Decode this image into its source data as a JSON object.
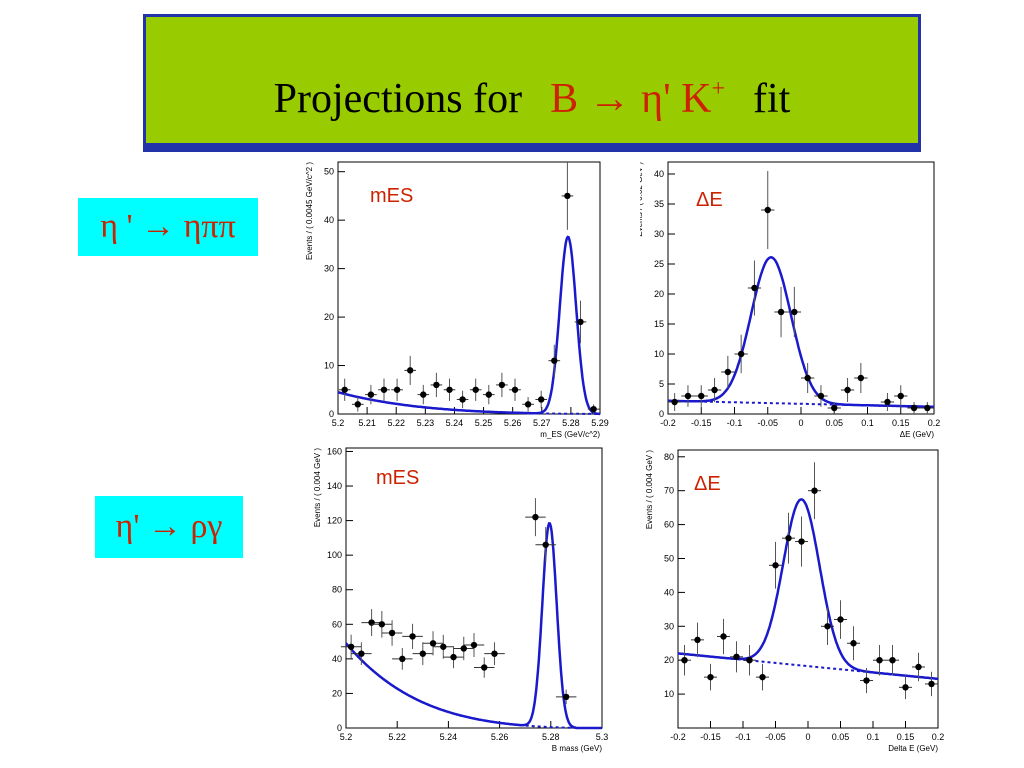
{
  "title": {
    "prefix": "Projections for",
    "decay_main": "B → η' K",
    "decay_sup": "+",
    "suffix": "fit"
  },
  "row_labels": [
    "η ' → ηππ",
    "η' → ργ"
  ],
  "colors": {
    "title_bg": "#99cc00",
    "title_border": "#2233aa",
    "label_bg": "#00ffff",
    "label_text": "#cc2200",
    "fit_curve": "#1a1acc",
    "data_points": "#000000",
    "annotation": "#cc2200"
  },
  "chart_data": [
    {
      "type": "scatter",
      "annotation": "mES",
      "xlabel": "m_ES (GeV/c^2)",
      "ylabel": "Events / ( 0.0045 GeV/c^2 )",
      "xlim": [
        5.2,
        5.29
      ],
      "ylim": [
        0,
        52
      ],
      "x_ticks": [
        5.2,
        5.21,
        5.22,
        5.23,
        5.24,
        5.25,
        5.26,
        5.27,
        5.28,
        5.29
      ],
      "y_ticks": [
        0,
        10,
        20,
        30,
        40,
        50
      ],
      "x_tick_labels": [
        "5.2",
        "5.21",
        "5.22",
        "5.23",
        "5.24",
        "5.25",
        "5.26",
        "5.27",
        "5.28",
        "5.29"
      ],
      "y_tick_labels": [
        "0",
        "10",
        "20",
        "30",
        "40",
        "50"
      ],
      "points": [
        {
          "x": 5.2023,
          "y": 5,
          "err": 2.3
        },
        {
          "x": 5.2068,
          "y": 2,
          "err": 1.5
        },
        {
          "x": 5.2113,
          "y": 4,
          "err": 2.0
        },
        {
          "x": 5.2158,
          "y": 5,
          "err": 2.3
        },
        {
          "x": 5.2203,
          "y": 5,
          "err": 2.3
        },
        {
          "x": 5.2248,
          "y": 9,
          "err": 3.0
        },
        {
          "x": 5.2293,
          "y": 4,
          "err": 2.0
        },
        {
          "x": 5.2338,
          "y": 6,
          "err": 2.5
        },
        {
          "x": 5.2383,
          "y": 5,
          "err": 2.3
        },
        {
          "x": 5.2428,
          "y": 3,
          "err": 1.8
        },
        {
          "x": 5.2473,
          "y": 5,
          "err": 2.3
        },
        {
          "x": 5.2518,
          "y": 4,
          "err": 2.0
        },
        {
          "x": 5.2563,
          "y": 6,
          "err": 2.5
        },
        {
          "x": 5.2608,
          "y": 5,
          "err": 2.3
        },
        {
          "x": 5.2653,
          "y": 2,
          "err": 1.5
        },
        {
          "x": 5.2698,
          "y": 3,
          "err": 1.8
        },
        {
          "x": 5.2743,
          "y": 11,
          "err": 3.3
        },
        {
          "x": 5.2788,
          "y": 45,
          "err": 7.0
        },
        {
          "x": 5.2833,
          "y": 19,
          "err": 4.4
        },
        {
          "x": 5.2878,
          "y": 1,
          "err": 1.0
        }
      ],
      "fit": {
        "model": "argus+gauss",
        "bkg_level": 4.5,
        "peak_mean": 5.279,
        "peak_sigma": 0.0028,
        "peak_amp": 36.5,
        "endpoint": 5.29
      }
    },
    {
      "type": "scatter",
      "annotation": "ΔE",
      "xlabel": "ΔE (GeV)",
      "ylabel": "Events / ( 0.02 GeV )",
      "xlim": [
        -0.2,
        0.2
      ],
      "ylim": [
        0,
        42
      ],
      "x_ticks": [
        -0.2,
        -0.15,
        -0.1,
        -0.05,
        0,
        0.05,
        0.1,
        0.15,
        0.2
      ],
      "y_ticks": [
        0,
        5,
        10,
        15,
        20,
        25,
        30,
        35,
        40
      ],
      "x_tick_labels": [
        "-0.2",
        "-0.15",
        "-0.1",
        "-0.05",
        "0",
        "0.05",
        "0.1",
        "0.15",
        "0.2"
      ],
      "y_tick_labels": [
        "0",
        "5",
        "10",
        "15",
        "20",
        "25",
        "30",
        "35",
        "40"
      ],
      "points": [
        {
          "x": -0.19,
          "y": 2,
          "err": 1.5
        },
        {
          "x": -0.17,
          "y": 3,
          "err": 1.8
        },
        {
          "x": -0.15,
          "y": 3,
          "err": 1.8
        },
        {
          "x": -0.13,
          "y": 4,
          "err": 2.0
        },
        {
          "x": -0.11,
          "y": 7,
          "err": 2.7
        },
        {
          "x": -0.09,
          "y": 10,
          "err": 3.2
        },
        {
          "x": -0.07,
          "y": 21,
          "err": 4.6
        },
        {
          "x": -0.05,
          "y": 34,
          "err": 6.5
        },
        {
          "x": -0.03,
          "y": 17,
          "err": 4.2
        },
        {
          "x": -0.01,
          "y": 17,
          "err": 4.2
        },
        {
          "x": 0.01,
          "y": 6,
          "err": 2.5
        },
        {
          "x": 0.03,
          "y": 3,
          "err": 1.8
        },
        {
          "x": 0.05,
          "y": 1,
          "err": 1.0
        },
        {
          "x": 0.07,
          "y": 4,
          "err": 2.0
        },
        {
          "x": 0.09,
          "y": 6,
          "err": 2.5
        },
        {
          "x": 0.13,
          "y": 2,
          "err": 1.5
        },
        {
          "x": 0.15,
          "y": 3,
          "err": 1.8
        },
        {
          "x": 0.17,
          "y": 1,
          "err": 1.0
        },
        {
          "x": 0.19,
          "y": 1,
          "err": 1.0
        }
      ],
      "fit": {
        "model": "linear+gauss",
        "bkg_at_xmin": 2.2,
        "bkg_at_xmax": 1.2,
        "peak_mean": -0.045,
        "peak_sigma": 0.03,
        "peak_amp": 24.3
      }
    },
    {
      "type": "scatter",
      "annotation": "mES",
      "xlabel": "B mass (GeV)",
      "ylabel": "Events / ( 0.004 GeV )",
      "xlim": [
        5.2,
        5.3
      ],
      "ylim": [
        0,
        162
      ],
      "x_ticks": [
        5.2,
        5.22,
        5.24,
        5.26,
        5.28,
        5.3
      ],
      "y_ticks": [
        0,
        20,
        40,
        60,
        80,
        100,
        120,
        140,
        160
      ],
      "x_tick_labels": [
        "5.2",
        "5.22",
        "5.24",
        "5.26",
        "5.28",
        "5.3"
      ],
      "y_tick_labels": [
        "0",
        "20",
        "40",
        "60",
        "80",
        "100",
        "120",
        "140",
        "160"
      ],
      "points": [
        {
          "x": 5.202,
          "y": 47,
          "err": 7.0
        },
        {
          "x": 5.206,
          "y": 43,
          "err": 6.6
        },
        {
          "x": 5.21,
          "y": 61,
          "err": 7.8
        },
        {
          "x": 5.214,
          "y": 60,
          "err": 7.7
        },
        {
          "x": 5.218,
          "y": 55,
          "err": 7.4
        },
        {
          "x": 5.222,
          "y": 40,
          "err": 6.3
        },
        {
          "x": 5.226,
          "y": 53,
          "err": 7.3
        },
        {
          "x": 5.23,
          "y": 43,
          "err": 6.6
        },
        {
          "x": 5.234,
          "y": 49,
          "err": 7.0
        },
        {
          "x": 5.238,
          "y": 47,
          "err": 6.9
        },
        {
          "x": 5.242,
          "y": 41,
          "err": 6.4
        },
        {
          "x": 5.246,
          "y": 46,
          "err": 6.8
        },
        {
          "x": 5.25,
          "y": 48,
          "err": 6.9
        },
        {
          "x": 5.254,
          "y": 35,
          "err": 5.9
        },
        {
          "x": 5.258,
          "y": 43,
          "err": 6.6
        },
        {
          "x": 5.274,
          "y": 122,
          "err": 11.0
        },
        {
          "x": 5.278,
          "y": 106,
          "err": 10.3
        },
        {
          "x": 5.286,
          "y": 18,
          "err": 4.2
        }
      ],
      "fit": {
        "model": "argus+gauss",
        "bkg_level": 49,
        "peak_mean": 5.2795,
        "peak_sigma": 0.0028,
        "peak_amp": 118,
        "endpoint": 5.29
      }
    },
    {
      "type": "scatter",
      "annotation": "ΔE",
      "xlabel": "Delta E (GeV)",
      "ylabel": "Events / ( 0.004 GeV )",
      "xlim": [
        -0.2,
        0.2
      ],
      "ylim": [
        0,
        82
      ],
      "x_ticks": [
        -0.2,
        -0.15,
        -0.1,
        -0.05,
        0,
        0.05,
        0.1,
        0.15,
        0.2
      ],
      "y_ticks": [
        10,
        20,
        30,
        40,
        50,
        60,
        70,
        80
      ],
      "x_tick_labels": [
        "-0.2",
        "-0.15",
        "-0.1",
        "-0.05",
        "0",
        "0.05",
        "0.1",
        "0.15",
        "0.2"
      ],
      "y_tick_labels": [
        "10",
        "20",
        "30",
        "40",
        "50",
        "60",
        "70",
        "80"
      ],
      "points": [
        {
          "x": -0.19,
          "y": 20,
          "err": 4.5
        },
        {
          "x": -0.17,
          "y": 26,
          "err": 5.1
        },
        {
          "x": -0.15,
          "y": 15,
          "err": 3.9
        },
        {
          "x": -0.13,
          "y": 27,
          "err": 5.2
        },
        {
          "x": -0.11,
          "y": 21,
          "err": 4.6
        },
        {
          "x": -0.09,
          "y": 20,
          "err": 4.5
        },
        {
          "x": -0.07,
          "y": 15,
          "err": 3.9
        },
        {
          "x": -0.05,
          "y": 48,
          "err": 6.9
        },
        {
          "x": -0.03,
          "y": 56,
          "err": 7.5
        },
        {
          "x": -0.01,
          "y": 55,
          "err": 7.4
        },
        {
          "x": 0.01,
          "y": 70,
          "err": 8.4
        },
        {
          "x": 0.03,
          "y": 30,
          "err": 5.5
        },
        {
          "x": 0.05,
          "y": 32,
          "err": 5.7
        },
        {
          "x": 0.07,
          "y": 25,
          "err": 5.0
        },
        {
          "x": 0.09,
          "y": 14,
          "err": 3.7
        },
        {
          "x": 0.11,
          "y": 20,
          "err": 4.5
        },
        {
          "x": 0.13,
          "y": 20,
          "err": 4.5
        },
        {
          "x": 0.15,
          "y": 12,
          "err": 3.5
        },
        {
          "x": 0.17,
          "y": 18,
          "err": 4.2
        },
        {
          "x": 0.19,
          "y": 13,
          "err": 3.6
        }
      ],
      "fit": {
        "model": "linear+gauss",
        "bkg_at_xmin": 22,
        "bkg_at_xmax": 14.5,
        "peak_mean": -0.01,
        "peak_sigma": 0.028,
        "peak_amp": 49
      }
    }
  ]
}
